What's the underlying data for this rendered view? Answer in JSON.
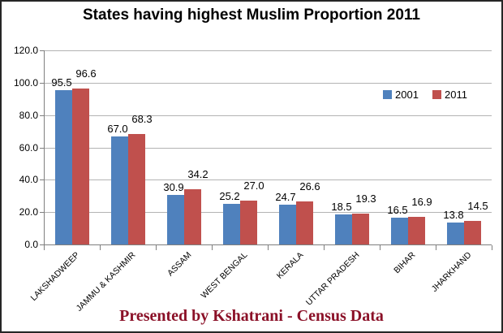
{
  "title": "States having highest Muslim Proportion 2011",
  "footer": {
    "text": "Presented by Kshatrani - Census Data"
  },
  "colors": {
    "bar_2001": "#4f81bd",
    "bar_2011": "#c0504d",
    "gridline": "#b3b3b3",
    "axis": "#7f7f7f",
    "frame_border": "#262626",
    "title_text": "#000000",
    "footer_text": "#8b1128"
  },
  "chart_data": {
    "type": "bar",
    "title": "States having highest Muslim Proportion 2011",
    "categories": [
      "LAKSHADWEEP",
      "JAMMU & KASHMIR",
      "ASSAM",
      "WEST BENGAL",
      "KERALA",
      "UTTAR PRADESH",
      "BIHAR",
      "JHARKHAND"
    ],
    "series": [
      {
        "name": "2001",
        "color": "#4f81bd",
        "values": [
          95.5,
          67.0,
          30.9,
          25.2,
          24.7,
          18.5,
          16.5,
          13.8
        ]
      },
      {
        "name": "2011",
        "color": "#c0504d",
        "values": [
          96.6,
          68.3,
          34.2,
          27.0,
          26.6,
          19.3,
          16.9,
          14.5
        ]
      }
    ],
    "xlabel": "",
    "ylabel": "",
    "ylim": [
      0,
      120
    ],
    "ytick_step": 20,
    "ytick_labels": [
      "0.0",
      "20.0",
      "40.0",
      "60.0",
      "80.0",
      "100.0",
      "120.0"
    ],
    "grid": true,
    "data_labels": true,
    "data_label_format": "0.0",
    "legend_position": "top-right-inside"
  }
}
